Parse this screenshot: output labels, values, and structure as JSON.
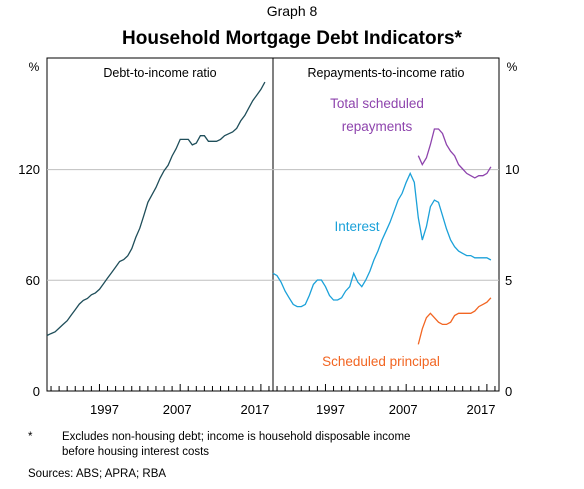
{
  "graph_number": "Graph 8",
  "title": "Household Mortgage Debt Indicators*",
  "footnote": {
    "marker": "*",
    "line1": "Excludes non-housing debt; income is household disposable income",
    "line2": "before housing interest costs"
  },
  "sources": "Sources:  ABS; APRA; RBA",
  "colors": {
    "debt": "#1f4e5a",
    "total": "#8e44ad",
    "interest": "#1ba1d9",
    "principal": "#f26522",
    "grid": "#bfbfbf"
  },
  "chart_data": [
    {
      "type": "line",
      "panel_title": "Debt-to-income ratio",
      "y_unit": "%",
      "ylim": [
        0,
        180
      ],
      "y_ticks": [
        0,
        60,
        120
      ],
      "xlim": [
        1990.5,
        2018.5
      ],
      "x_tick_labels": [
        "1997",
        "2007",
        "2017"
      ],
      "x_tick_values": [
        1997,
        2007,
        2017
      ],
      "grid": true,
      "series": [
        {
          "color_key": "debt",
          "x": [
            1990.5,
            1991,
            1991.5,
            1992,
            1992.5,
            1993,
            1993.5,
            1994,
            1994.5,
            1995,
            1995.5,
            1996,
            1996.5,
            1997,
            1997.5,
            1998,
            1998.5,
            1999,
            1999.5,
            2000,
            2000.5,
            2001,
            2001.5,
            2002,
            2002.5,
            2003,
            2003.5,
            2004,
            2004.5,
            2005,
            2005.5,
            2006,
            2006.5,
            2007,
            2007.5,
            2008,
            2008.5,
            2009,
            2009.5,
            2010,
            2010.5,
            2011,
            2011.5,
            2012,
            2012.5,
            2013,
            2013.5,
            2014,
            2014.5,
            2015,
            2015.5,
            2016,
            2016.5,
            2017,
            2017.5
          ],
          "y": [
            30,
            31,
            32,
            34,
            36,
            38,
            41,
            44,
            47,
            49,
            50,
            52,
            53,
            55,
            58,
            61,
            64,
            67,
            70,
            71,
            73,
            77,
            83,
            88,
            95,
            102,
            106,
            110,
            115,
            119,
            122,
            127,
            131,
            136,
            136,
            136,
            133,
            134,
            138,
            138,
            135,
            135,
            135,
            136,
            138,
            139,
            140,
            142,
            146,
            149,
            153,
            157,
            160,
            163,
            167
          ]
        }
      ]
    },
    {
      "type": "line",
      "panel_title": "Repayments-to-income ratio",
      "y_unit": "%",
      "ylim": [
        0,
        15
      ],
      "y_ticks": [
        0,
        5,
        10
      ],
      "xlim": [
        1990.5,
        2018.5
      ],
      "x_tick_labels": [
        "1997",
        "2007",
        "2017"
      ],
      "x_tick_values": [
        1997,
        2007,
        2017
      ],
      "grid": true,
      "series": [
        {
          "name": "Total scheduled repayments",
          "label_lines": [
            "Total scheduled",
            "repayments"
          ],
          "color_key": "total",
          "x": [
            2008.5,
            2009,
            2009.5,
            2010,
            2010.5,
            2011,
            2011.5,
            2012,
            2012.5,
            2013,
            2013.5,
            2014,
            2014.5,
            2015,
            2015.5,
            2016,
            2016.5,
            2017,
            2017.5
          ],
          "y": [
            10.6,
            10.2,
            10.5,
            11.1,
            11.8,
            11.8,
            11.6,
            11.1,
            10.8,
            10.6,
            10.2,
            10.0,
            9.8,
            9.7,
            9.6,
            9.7,
            9.7,
            9.8,
            10.1
          ]
        },
        {
          "name": "Interest",
          "color_key": "interest",
          "x": [
            1990.5,
            1991,
            1991.5,
            1992,
            1992.5,
            1993,
            1993.5,
            1994,
            1994.5,
            1995,
            1995.5,
            1996,
            1996.5,
            1997,
            1997.5,
            1998,
            1998.5,
            1999,
            1999.5,
            2000,
            2000.5,
            2001,
            2001.5,
            2002,
            2002.5,
            2003,
            2003.5,
            2004,
            2004.5,
            2005,
            2005.5,
            2006,
            2006.5,
            2007,
            2007.5,
            2008,
            2008.5,
            2009,
            2009.5,
            2010,
            2010.5,
            2011,
            2011.5,
            2012,
            2012.5,
            2013,
            2013.5,
            2014,
            2014.5,
            2015,
            2015.5,
            2016,
            2016.5,
            2017,
            2017.5
          ],
          "y": [
            5.3,
            5.2,
            4.9,
            4.5,
            4.2,
            3.9,
            3.8,
            3.8,
            3.9,
            4.3,
            4.8,
            5.0,
            5.0,
            4.7,
            4.3,
            4.1,
            4.1,
            4.2,
            4.5,
            4.7,
            5.3,
            4.9,
            4.7,
            5.0,
            5.4,
            5.9,
            6.3,
            6.8,
            7.2,
            7.6,
            8.1,
            8.6,
            8.9,
            9.4,
            9.8,
            9.4,
            7.8,
            6.8,
            7.4,
            8.3,
            8.6,
            8.5,
            7.9,
            7.3,
            6.8,
            6.5,
            6.3,
            6.2,
            6.1,
            6.1,
            6.0,
            6.0,
            6.0,
            6.0,
            5.9
          ]
        },
        {
          "name": "Scheduled principal",
          "color_key": "principal",
          "x": [
            2008.5,
            2009,
            2009.5,
            2010,
            2010.5,
            2011,
            2011.5,
            2012,
            2012.5,
            2013,
            2013.5,
            2014,
            2014.5,
            2015,
            2015.5,
            2016,
            2016.5,
            2017,
            2017.5
          ],
          "y": [
            2.1,
            2.8,
            3.3,
            3.5,
            3.3,
            3.1,
            3.0,
            3.0,
            3.1,
            3.4,
            3.5,
            3.5,
            3.5,
            3.5,
            3.6,
            3.8,
            3.9,
            4.0,
            4.2
          ]
        }
      ]
    }
  ]
}
